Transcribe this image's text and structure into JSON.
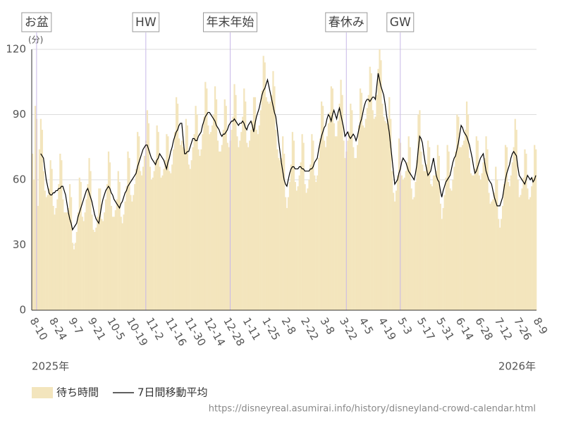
{
  "chart_data": {
    "type": "bar_line",
    "y_unit": "(分)",
    "year_labels": [
      "2025年",
      "2026年"
    ],
    "source": "https://disneyreal.asumirai.info/history/disneyland-crowd-calendar.html",
    "ylim": [
      0,
      120
    ],
    "yticks": [
      0,
      30,
      60,
      90,
      120
    ],
    "grid": true,
    "categories": [
      "8-10",
      null,
      null,
      null,
      null,
      null,
      null,
      null,
      null,
      null,
      null,
      null,
      null,
      null,
      "8-24",
      null,
      null,
      null,
      null,
      null,
      null,
      null,
      null,
      null,
      null,
      null,
      null,
      null,
      "9-7",
      null,
      null,
      null,
      null,
      null,
      null,
      null,
      null,
      null,
      null,
      null,
      null,
      null,
      "9-21",
      null,
      null,
      null,
      null,
      null,
      null,
      null,
      null,
      null,
      null,
      null,
      null,
      null,
      "10-5",
      null,
      null,
      null,
      null,
      null,
      null,
      null,
      null,
      null,
      null,
      null,
      null,
      null,
      "10-19",
      null,
      null,
      null,
      null,
      null,
      null,
      null,
      null,
      null,
      null,
      null,
      null,
      null,
      "11-2",
      null,
      null,
      null,
      null,
      null,
      null,
      null,
      null,
      null,
      null,
      null,
      null,
      null,
      "11-16",
      null,
      null,
      null,
      null,
      null,
      null,
      null,
      null,
      null,
      null,
      null,
      null,
      null,
      "11-30",
      null,
      null,
      null,
      null,
      null,
      null,
      null,
      null,
      null,
      null,
      null,
      null,
      null,
      "12-14",
      null,
      null,
      null,
      null,
      null,
      null,
      null,
      null,
      null,
      null,
      null,
      null,
      null,
      "12-28",
      null,
      null,
      null,
      null,
      null,
      null,
      null,
      null,
      null,
      null,
      null,
      null,
      null,
      "1-11",
      null,
      null,
      null,
      null,
      null,
      null,
      null,
      null,
      null,
      null,
      null,
      null,
      null,
      "1-25",
      null,
      null,
      null,
      null,
      null,
      null,
      null,
      null,
      null,
      null,
      null,
      null,
      null,
      "2-8",
      null,
      null,
      null,
      null,
      null,
      null,
      null,
      null,
      null,
      null,
      null,
      null,
      null,
      "2-22",
      null,
      null,
      null,
      null,
      null,
      null,
      null,
      null,
      null,
      null,
      null,
      null,
      null,
      "3-8",
      null,
      null,
      null,
      null,
      null,
      null,
      null,
      null,
      null,
      null,
      null,
      null,
      null,
      "3-22",
      null,
      null,
      null,
      null,
      null,
      null,
      null,
      null,
      null,
      null,
      null,
      null,
      null,
      "4-5",
      null,
      null,
      null,
      null,
      null,
      null,
      null,
      null,
      null,
      null,
      null,
      null,
      null,
      "4-19",
      null,
      null,
      null,
      null,
      null,
      null,
      null,
      null,
      null,
      null,
      null,
      null,
      null,
      "5-3",
      null,
      null,
      null,
      null,
      null,
      null,
      null,
      null,
      null,
      null,
      null,
      null,
      null,
      "5-17",
      null,
      null,
      null,
      null,
      null,
      null,
      null,
      null,
      null,
      null,
      null,
      null,
      null,
      "5-31",
      null,
      null,
      null,
      null,
      null,
      null,
      null,
      null,
      null,
      null,
      null,
      null,
      null,
      "6-14",
      null,
      null,
      null,
      null,
      null,
      null,
      null,
      null,
      null,
      null,
      null,
      null,
      null,
      "6-28",
      null,
      null,
      null,
      null,
      null,
      null,
      null,
      null,
      null,
      null,
      null,
      null,
      null,
      "7-12",
      null,
      null,
      null,
      null,
      null,
      null,
      null,
      null,
      null,
      null,
      null,
      null,
      null,
      "7-26",
      null,
      null,
      null,
      null,
      null,
      null,
      null,
      null,
      null,
      null,
      null,
      null,
      null,
      "8-9"
    ],
    "annotations": [
      {
        "label": "お盆",
        "at": 3
      },
      {
        "label": "HW",
        "at": 82
      },
      {
        "label": "年末年始",
        "at": 143
      },
      {
        "label": "春休み",
        "at": 227
      },
      {
        "label": "GW",
        "at": 266
      }
    ],
    "series": [
      {
        "name": "待ち時間",
        "kind": "bar",
        "color": "#f3e5bd",
        "values": [
          72,
          60,
          94,
          88,
          48,
          74,
          88,
          83,
          64,
          55,
          52,
          53,
          56,
          69,
          65,
          48,
          44,
          47,
          51,
          58,
          72,
          69,
          51,
          45,
          45,
          45,
          47,
          58,
          52,
          31,
          28,
          31,
          36,
          45,
          61,
          59,
          43,
          41,
          45,
          51,
          58,
          70,
          64,
          44,
          37,
          36,
          38,
          43,
          56,
          56,
          42,
          41,
          45,
          51,
          58,
          73,
          68,
          48,
          43,
          43,
          46,
          51,
          64,
          59,
          43,
          40,
          44,
          50,
          57,
          73,
          70,
          53,
          50,
          53,
          58,
          65,
          82,
          80,
          64,
          62,
          66,
          71,
          78,
          92,
          86,
          66,
          60,
          61,
          64,
          69,
          85,
          82,
          66,
          61,
          62,
          65,
          69,
          81,
          80,
          64,
          63,
          67,
          74,
          82,
          98,
          95,
          79,
          76,
          78,
          75,
          74,
          88,
          85,
          67,
          65,
          69,
          75,
          81,
          94,
          90,
          74,
          71,
          74,
          81,
          89,
          105,
          102,
          85,
          81,
          82,
          85,
          90,
          103,
          97,
          78,
          73,
          73,
          76,
          83,
          97,
          94,
          77,
          75,
          78,
          83,
          89,
          104,
          99,
          80,
          75,
          78,
          82,
          89,
          102,
          96,
          77,
          75,
          78,
          83,
          87,
          98,
          98,
          83,
          81,
          85,
          92,
          101,
          117,
          114,
          98,
          96,
          95,
          96,
          99,
          110,
          103,
          83,
          74,
          70,
          69,
          70,
          80,
          72,
          52,
          47,
          52,
          59,
          67,
          82,
          78,
          59,
          55,
          57,
          62,
          68,
          81,
          77,
          58,
          54,
          56,
          60,
          67,
          81,
          78,
          62,
          59,
          62,
          70,
          79,
          96,
          94,
          78,
          75,
          80,
          86,
          91,
          103,
          102,
          86,
          80,
          80,
          87,
          95,
          106,
          99,
          78,
          70,
          73,
          78,
          82,
          95,
          92,
          75,
          70,
          70,
          76,
          85,
          102,
          100,
          85,
          84,
          88,
          93,
          99,
          112,
          109,
          92,
          88,
          89,
          99,
          111,
          120,
          115,
          95,
          89,
          87,
          86,
          88,
          98,
          88,
          64,
          54,
          50,
          55,
          62,
          79,
          77,
          62,
          60,
          61,
          64,
          68,
          80,
          75,
          56,
          51,
          52,
          59,
          69,
          90,
          92,
          73,
          67,
          64,
          64,
          67,
          78,
          75,
          58,
          57,
          62,
          62,
          64,
          76,
          71,
          49,
          42,
          47,
          53,
          61,
          76,
          73,
          56,
          55,
          60,
          66,
          73,
          90,
          89,
          75,
          75,
          76,
          78,
          83,
          96,
          90,
          70,
          63,
          62,
          62,
          65,
          80,
          78,
          62,
          60,
          63,
          68,
          70,
          80,
          74,
          54,
          49,
          50,
          51,
          54,
          66,
          60,
          42,
          38,
          42,
          48,
          58,
          76,
          75,
          59,
          57,
          62,
          68,
          75,
          88,
          83,
          60,
          52,
          53,
          56,
          61,
          74,
          72,
          56,
          51,
          52,
          57,
          61,
          76,
          74
        ]
      },
      {
        "name": "7日間移動平均",
        "kind": "line",
        "color": "#000000",
        "values": [
          null,
          null,
          null,
          null,
          null,
          null,
          72,
          71,
          70,
          65,
          60,
          57,
          54,
          53,
          53,
          54,
          54,
          55,
          55,
          56,
          56,
          57,
          57,
          55,
          53,
          49,
          45,
          42,
          40,
          37,
          38,
          39,
          40,
          43,
          45,
          47,
          49,
          51,
          53,
          55,
          56,
          54,
          52,
          50,
          47,
          44,
          42,
          41,
          40,
          44,
          48,
          51,
          53,
          55,
          56,
          57,
          56,
          54,
          53,
          51,
          50,
          49,
          48,
          47,
          49,
          50,
          52,
          54,
          55,
          57,
          58,
          59,
          60,
          61,
          62,
          63,
          66,
          68,
          70,
          72,
          74,
          75,
          76,
          76,
          74,
          72,
          70,
          69,
          68,
          67,
          69,
          70,
          72,
          71,
          70,
          69,
          67,
          65,
          68,
          70,
          73,
          75,
          78,
          80,
          82,
          83,
          85,
          86,
          86,
          79,
          72,
          72,
          73,
          73,
          75,
          77,
          79,
          79,
          78,
          78,
          80,
          81,
          82,
          85,
          87,
          89,
          90,
          91,
          91,
          90,
          89,
          88,
          87,
          85,
          84,
          83,
          81,
          80,
          81,
          81,
          82,
          83,
          85,
          86,
          87,
          87,
          88,
          87,
          86,
          85,
          86,
          86,
          87,
          86,
          84,
          83,
          85,
          86,
          87,
          85,
          82,
          86,
          89,
          91,
          93,
          96,
          99,
          101,
          102,
          104,
          106,
          103,
          100,
          97,
          94,
          91,
          89,
          84,
          78,
          73,
          68,
          64,
          60,
          58,
          57,
          60,
          63,
          65,
          66,
          66,
          65,
          65,
          65,
          66,
          66,
          65,
          65,
          64,
          64,
          64,
          64,
          65,
          65,
          66,
          68,
          69,
          70,
          74,
          77,
          80,
          82,
          84,
          85,
          88,
          90,
          89,
          87,
          90,
          92,
          90,
          88,
          91,
          93,
          90,
          87,
          84,
          80,
          81,
          82,
          80,
          79,
          80,
          81,
          80,
          78,
          80,
          83,
          86,
          88,
          91,
          94,
          96,
          97,
          97,
          96,
          97,
          98,
          98,
          97,
          103,
          109,
          106,
          103,
          101,
          99,
          95,
          90,
          86,
          82,
          76,
          70,
          64,
          58,
          59,
          60,
          63,
          65,
          68,
          70,
          69,
          68,
          66,
          64,
          63,
          62,
          61,
          60,
          63,
          67,
          74,
          80,
          79,
          77,
          72,
          68,
          65,
          62,
          63,
          64,
          67,
          70,
          66,
          62,
          60,
          59,
          55,
          52,
          55,
          57,
          59,
          60,
          61,
          62,
          65,
          68,
          70,
          71,
          74,
          77,
          81,
          85,
          84,
          82,
          81,
          80,
          78,
          76,
          73,
          70,
          66,
          63,
          64,
          66,
          68,
          70,
          71,
          72,
          68,
          64,
          62,
          60,
          59,
          58,
          55,
          52,
          50,
          48,
          48,
          48,
          50,
          52,
          56,
          60,
          63,
          65,
          67,
          70,
          72,
          73,
          72,
          71,
          66,
          62,
          61,
          60,
          59,
          58,
          60,
          62,
          61,
          60,
          61,
          59,
          60,
          62
        ]
      }
    ]
  }
}
